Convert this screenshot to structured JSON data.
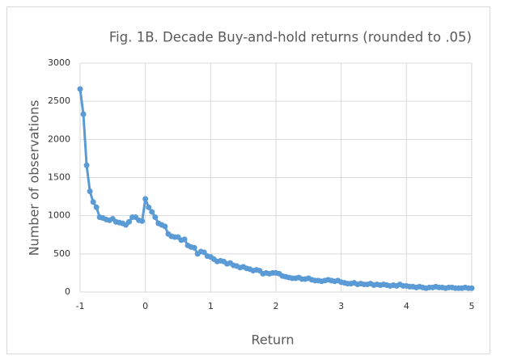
{
  "chart_data": {
    "type": "line",
    "title": "Fig. 1B. Decade Buy-and-hold returns (rounded to .05)",
    "x_label": "Return",
    "y_label": "Number of observations",
    "color": "#5b9bd5",
    "grid": true,
    "markers": true,
    "x": [
      -1,
      -0.95,
      -0.9,
      -0.85,
      -0.8,
      -0.75,
      -0.7,
      -0.65,
      -0.6,
      -0.55,
      -0.5,
      -0.45,
      -0.4,
      -0.35,
      -0.3,
      -0.25,
      -0.2,
      -0.15,
      -0.1,
      -0.05,
      0,
      0.05,
      0.1,
      0.15,
      0.2,
      0.25,
      0.3,
      0.35,
      0.4,
      0.45,
      0.5,
      0.55,
      0.6,
      0.65,
      0.7,
      0.75,
      0.8,
      0.85,
      0.9,
      0.95,
      1,
      1.05,
      1.1,
      1.15,
      1.2,
      1.25,
      1.3,
      1.35,
      1.4,
      1.45,
      1.5,
      1.55,
      1.6,
      1.65,
      1.7,
      1.75,
      1.8,
      1.85,
      1.9,
      1.95,
      2,
      2.05,
      2.1,
      2.15,
      2.2,
      2.25,
      2.3,
      2.35,
      2.4,
      2.45,
      2.5,
      2.55,
      2.6,
      2.65,
      2.7,
      2.75,
      2.8,
      2.85,
      2.9,
      2.95,
      3,
      3.05,
      3.1,
      3.15,
      3.2,
      3.25,
      3.3,
      3.35,
      3.4,
      3.45,
      3.5,
      3.55,
      3.6,
      3.65,
      3.7,
      3.75,
      3.8,
      3.85,
      3.9,
      3.95,
      4,
      4.05,
      4.1,
      4.15,
      4.2,
      4.25,
      4.3,
      4.35,
      4.4,
      4.45,
      4.5,
      4.55,
      4.6,
      4.65,
      4.7,
      4.75,
      4.8,
      4.85,
      4.9,
      4.95,
      5
    ],
    "values": [
      2660,
      2330,
      1660,
      1320,
      1180,
      1110,
      980,
      970,
      950,
      940,
      960,
      920,
      910,
      900,
      880,
      920,
      980,
      980,
      940,
      930,
      1220,
      1110,
      1050,
      980,
      900,
      880,
      860,
      760,
      730,
      720,
      720,
      680,
      690,
      610,
      590,
      580,
      500,
      530,
      520,
      470,
      460,
      430,
      400,
      410,
      400,
      370,
      380,
      350,
      340,
      320,
      330,
      310,
      300,
      280,
      290,
      280,
      240,
      250,
      240,
      250,
      250,
      240,
      210,
      200,
      190,
      180,
      180,
      190,
      170,
      170,
      180,
      160,
      150,
      150,
      140,
      150,
      160,
      150,
      140,
      150,
      130,
      120,
      110,
      110,
      120,
      100,
      110,
      100,
      100,
      110,
      90,
      100,
      90,
      100,
      90,
      80,
      90,
      80,
      100,
      80,
      80,
      70,
      70,
      60,
      70,
      60,
      50,
      60,
      60,
      70,
      60,
      60,
      50,
      60,
      60,
      50,
      50,
      50,
      60,
      50,
      50
    ],
    "xlim": [
      -1,
      5
    ],
    "xticks": [
      -1,
      0,
      1,
      2,
      3,
      4,
      5
    ],
    "ylim": [
      0,
      3000
    ],
    "yticks": [
      0,
      500,
      1000,
      1500,
      2000,
      2500,
      3000
    ]
  }
}
